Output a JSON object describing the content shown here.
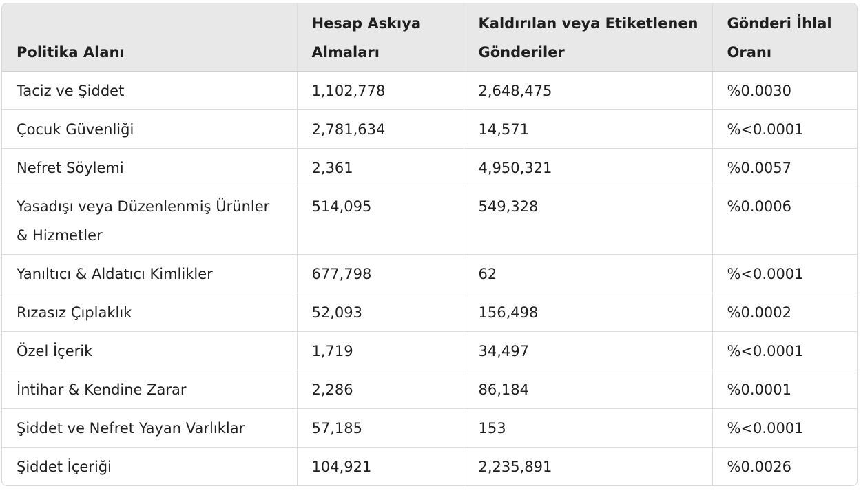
{
  "table": {
    "headers": [
      "Politika Alanı",
      "Hesap Askıya Almaları",
      "Kaldırılan veya Etiketlenen Gönderiler",
      "Gönderi İhlal Oranı"
    ],
    "rows": [
      [
        "Taciz ve Şiddet",
        "1,102,778",
        "2,648,475",
        "%0.0030"
      ],
      [
        "Çocuk Güvenliği",
        "2,781,634",
        "14,571",
        "%<0.0001"
      ],
      [
        "Nefret Söylemi",
        "2,361",
        "4,950,321",
        "%0.0057"
      ],
      [
        "Yasadışı veya Düzenlenmiş Ürünler & Hizmetler",
        "514,095",
        "549,328",
        "%0.0006"
      ],
      [
        "Yanıltıcı & Aldatıcı Kimlikler",
        "677,798",
        "62",
        "%<0.0001"
      ],
      [
        "Rızasız Çıplaklık",
        "52,093",
        "156,498",
        "%0.0002"
      ],
      [
        "Özel İçerik",
        "1,719",
        "34,497",
        "%<0.0001"
      ],
      [
        "İntihar & Kendine Zarar",
        "2,286",
        "86,184",
        "%0.0001"
      ],
      [
        "Şiddet ve Nefret Yayan Varlıklar",
        "57,185",
        "153",
        "%<0.0001"
      ],
      [
        "Şiddet İçeriği",
        "104,921",
        "2,235,891",
        "%0.0026"
      ]
    ]
  }
}
